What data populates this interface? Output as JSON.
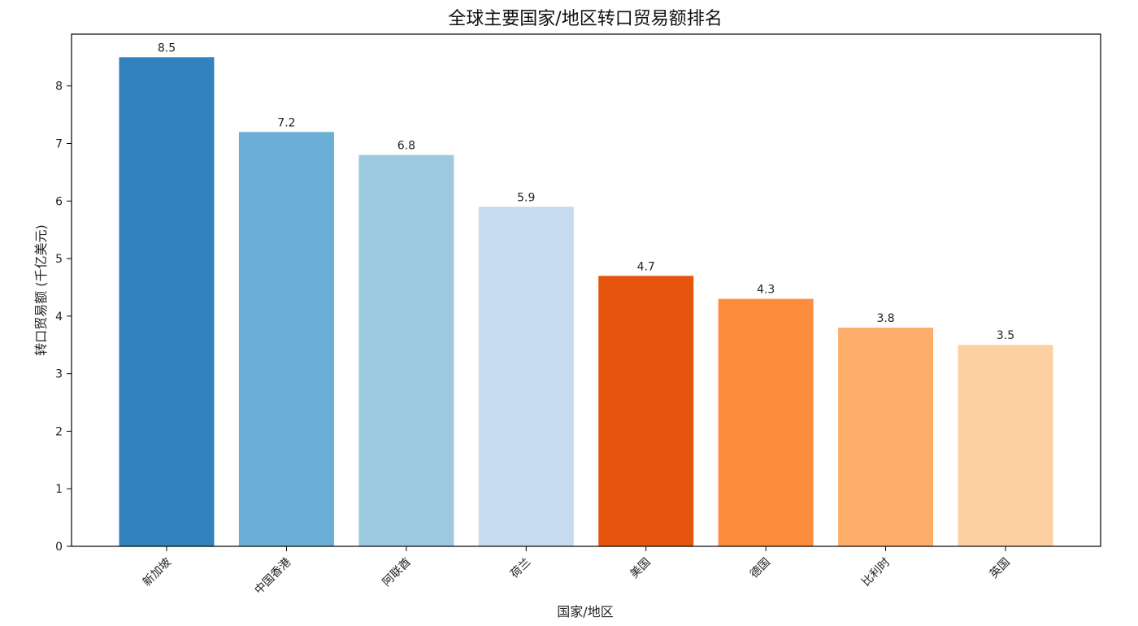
{
  "chart_data": {
    "type": "bar",
    "title": "全球主要国家/地区转口贸易额排名",
    "xlabel": "国家/地区",
    "ylabel": "转口贸易额 (千亿美元)",
    "categories": [
      "新加坡",
      "中国香港",
      "阿联酋",
      "荷兰",
      "美国",
      "德国",
      "比利时",
      "英国"
    ],
    "values": [
      8.5,
      7.2,
      6.8,
      5.9,
      4.7,
      4.3,
      3.8,
      3.5
    ],
    "value_labels": [
      "8.5",
      "7.2",
      "6.8",
      "5.9",
      "4.7",
      "4.3",
      "3.8",
      "3.5"
    ],
    "colors": [
      "#3182bd",
      "#6baed6",
      "#9ecae1",
      "#c6dbef",
      "#e6550d",
      "#fd8d3c",
      "#fdae6b",
      "#fdd0a2"
    ],
    "y_ticks": [
      0,
      1,
      2,
      3,
      4,
      5,
      6,
      7,
      8
    ],
    "ylim": [
      0,
      8.9
    ],
    "grid": false,
    "x_tick_rotation": -45
  }
}
